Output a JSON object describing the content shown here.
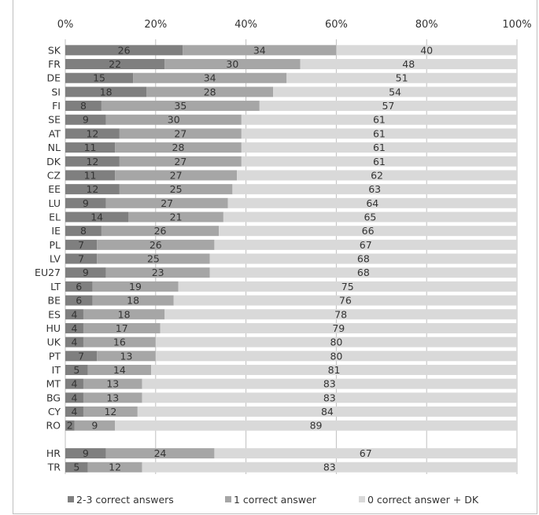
{
  "chart_data": {
    "type": "bar",
    "orientation": "horizontal",
    "stacked": "percent",
    "categories": [
      "SK",
      "FR",
      "DE",
      "SI",
      "FI",
      "SE",
      "AT",
      "NL",
      "DK",
      "CZ",
      "EE",
      "LU",
      "EL",
      "IE",
      "PL",
      "LV",
      "EU27",
      "LT",
      "BE",
      "ES",
      "HU",
      "UK",
      "PT",
      "IT",
      "MT",
      "BG",
      "CY",
      "RO",
      "",
      "HR",
      "TR"
    ],
    "series": [
      {
        "name": "2-3 correct answers",
        "color": "#7f7f7f",
        "values": [
          26,
          22,
          15,
          18,
          8,
          9,
          12,
          11,
          12,
          11,
          12,
          9,
          14,
          8,
          7,
          7,
          9,
          6,
          6,
          4,
          4,
          4,
          7,
          5,
          4,
          4,
          4,
          2,
          null,
          9,
          5
        ]
      },
      {
        "name": "1 correct answer",
        "color": "#a6a6a6",
        "values": [
          34,
          30,
          34,
          28,
          35,
          30,
          27,
          28,
          27,
          27,
          25,
          27,
          21,
          26,
          26,
          25,
          23,
          19,
          18,
          18,
          17,
          16,
          13,
          14,
          13,
          13,
          12,
          9,
          null,
          24,
          12
        ]
      },
      {
        "name": "0 correct answer + DK",
        "color": "#d9d9d9",
        "values": [
          40,
          48,
          51,
          54,
          57,
          61,
          61,
          61,
          61,
          62,
          63,
          64,
          65,
          66,
          67,
          68,
          68,
          75,
          76,
          78,
          79,
          80,
          80,
          81,
          83,
          83,
          84,
          89,
          null,
          67,
          83
        ]
      }
    ],
    "x_ticks": [
      "0%",
      "20%",
      "40%",
      "60%",
      "80%",
      "100%"
    ],
    "xlim": [
      0,
      100
    ],
    "grid": true,
    "legend_position": "bottom"
  }
}
